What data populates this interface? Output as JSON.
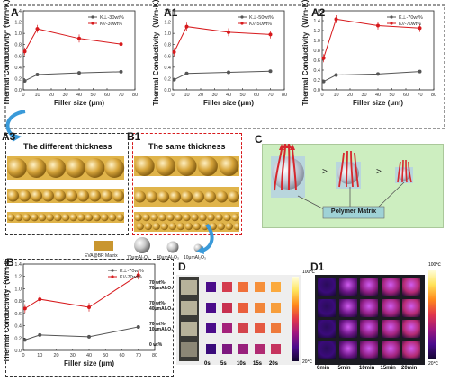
{
  "panels": {
    "A": "A",
    "A1": "A1",
    "A2": "A2",
    "A3": "A3",
    "B1": "B1",
    "C": "C",
    "B": "B",
    "D": "D",
    "D1": "D1"
  },
  "colors": {
    "series_low": "#555555",
    "series_high": "#d7191c",
    "matrix": "#e0b44a",
    "sphere": "#b8b8b8",
    "green_box": "#cdeec0",
    "arrow": "#d6272c",
    "curved_arrow": "#3a9ad9"
  },
  "schematic": {
    "a3_title": "The different thickness",
    "b1_title": "The same  thickness",
    "polymer_matrix": "Polymer Matrix",
    "legend_matrix": "EVA@BR Matrix",
    "legend_70": "70μmAl₂O₃",
    "legend_40": "40μmAl₂O₃",
    "legend_10": "10μmAl₂O₃",
    "gt1": ">",
    "gt2": ">"
  },
  "heatmap_d": {
    "row_labels": [
      "70 wt%-\n70μmAl₂O₃",
      "70 wt%-\n40μmAl₂O₃",
      "70 wt%-\n10μmAl₂O₃",
      "0 wt%"
    ],
    "col_labels": [
      "0s",
      "5s",
      "10s",
      "15s",
      "20s"
    ],
    "scale_max": "100℃",
    "scale_min": "20℃"
  },
  "heatmap_d1": {
    "col_labels": [
      "0min",
      "5min",
      "10min",
      "15min",
      "20min"
    ],
    "scale_max": "100℃",
    "scale_min": "20℃"
  },
  "chart_data": [
    {
      "id": "A",
      "type": "line",
      "xlabel": "Filler  size (μm)",
      "ylabel": "Thermal Conductivity（W/m·K）",
      "x": [
        1,
        10,
        40,
        70
      ],
      "xlim": [
        0,
        80
      ],
      "xticks": [
        0,
        10,
        20,
        30,
        40,
        50,
        60,
        70,
        80
      ],
      "ylim": [
        0,
        1.4
      ],
      "yticks": [
        0.0,
        0.2,
        0.4,
        0.6,
        0.8,
        1.0,
        1.2,
        1.4
      ],
      "legend_position": "top-right",
      "series": [
        {
          "name": "K⊥-30wt%",
          "values": [
            0.16,
            0.27,
            0.3,
            0.32
          ]
        },
        {
          "name": "K//-30wt%",
          "values": [
            0.68,
            1.08,
            0.91,
            0.81
          ]
        }
      ]
    },
    {
      "id": "A1",
      "type": "line",
      "xlabel": "Filler  size (μm)",
      "ylabel": "Thermal Conductivity（W/m·K）",
      "x": [
        1,
        10,
        40,
        70
      ],
      "xlim": [
        0,
        80
      ],
      "xticks": [
        0,
        10,
        20,
        30,
        40,
        50,
        60,
        70,
        80
      ],
      "ylim": [
        0,
        1.4
      ],
      "yticks": [
        0.0,
        0.2,
        0.4,
        0.6,
        0.8,
        1.0,
        1.2,
        1.4
      ],
      "legend_position": "top-right",
      "series": [
        {
          "name": "K⊥-50wt%",
          "values": [
            0.18,
            0.29,
            0.31,
            0.33
          ]
        },
        {
          "name": "K//-50wt%",
          "values": [
            0.67,
            1.12,
            1.02,
            0.98
          ]
        }
      ]
    },
    {
      "id": "A2",
      "type": "line",
      "xlabel": "Filler  size (μm)",
      "ylabel": "Thermal Conductivity（W/m·K）",
      "x": [
        1,
        10,
        40,
        70
      ],
      "xlim": [
        0,
        80
      ],
      "xticks": [
        0,
        10,
        20,
        30,
        40,
        50,
        60,
        70,
        80
      ],
      "ylim": [
        0,
        1.6
      ],
      "yticks": [
        0.0,
        0.2,
        0.4,
        0.6,
        0.8,
        1.0,
        1.2,
        1.4,
        1.6
      ],
      "legend_position": "top-right",
      "series": [
        {
          "name": "K⊥-70wt%",
          "values": [
            0.17,
            0.3,
            0.32,
            0.37
          ]
        },
        {
          "name": "K//-70wt%",
          "values": [
            0.64,
            1.43,
            1.3,
            1.25
          ]
        }
      ]
    },
    {
      "id": "B",
      "type": "line",
      "xlabel": "Filler  size (μm)",
      "ylabel": "Thermal Conductivity（W/m·K）",
      "x": [
        1,
        10,
        40,
        70
      ],
      "xlim": [
        0,
        80
      ],
      "xticks": [
        0,
        10,
        20,
        30,
        40,
        50,
        60,
        70,
        80
      ],
      "ylim": [
        0,
        1.4
      ],
      "yticks": [
        0.0,
        0.2,
        0.4,
        0.6,
        0.8,
        1.0,
        1.2,
        1.4
      ],
      "legend_position": "top-right",
      "series": [
        {
          "name": "K⊥-70wt%",
          "values": [
            0.17,
            0.25,
            0.22,
            0.38
          ]
        },
        {
          "name": "K//-70wt%",
          "values": [
            0.68,
            0.83,
            0.7,
            1.22
          ]
        }
      ]
    }
  ]
}
